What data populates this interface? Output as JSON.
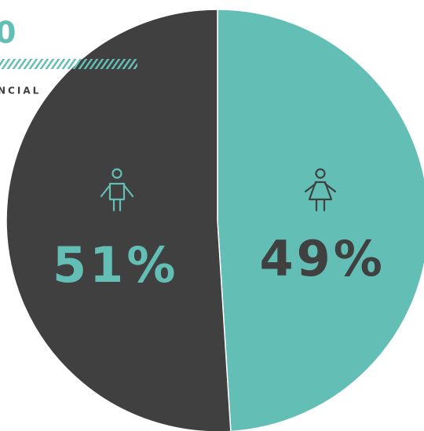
{
  "chart_data": {
    "type": "pie",
    "title": "0",
    "subtitle": "NCIAL",
    "categories": [
      null,
      null
    ],
    "values": [
      49,
      51
    ],
    "value_labels": [
      "49%",
      "51%"
    ],
    "colors": [
      "#63bfb5",
      "#404040"
    ],
    "label_colors": [
      "#404040",
      "#63bfb5"
    ],
    "start_angle": 0,
    "direction": "clockwise"
  }
}
